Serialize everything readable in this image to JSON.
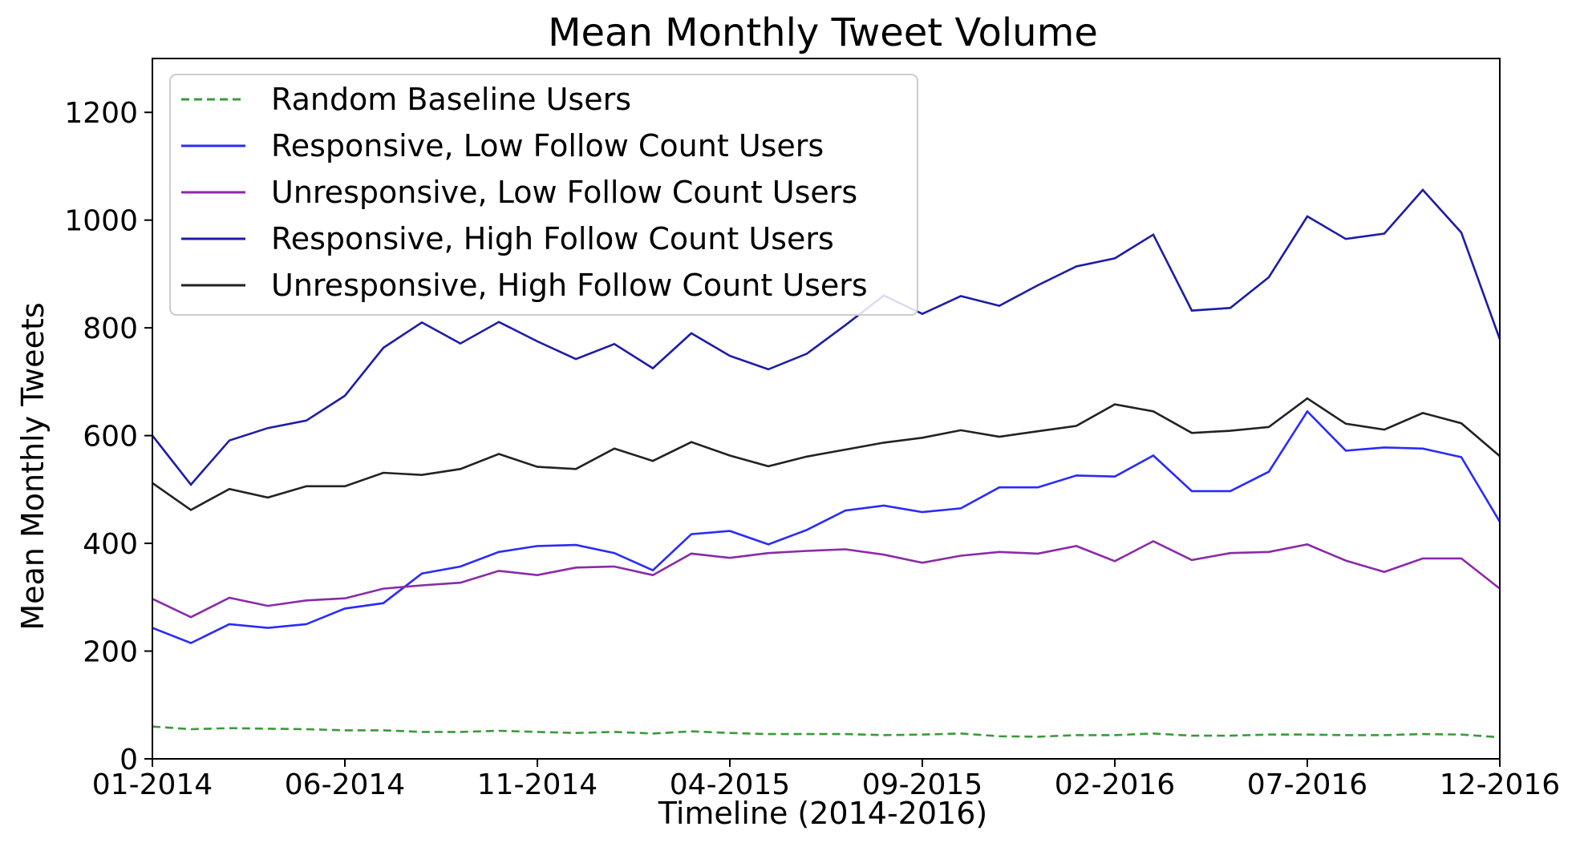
{
  "chart_data": {
    "type": "line",
    "title": "Mean Monthly Tweet Volume",
    "xlabel": "Timeline (2014-2016)",
    "ylabel": "Mean Monthly Tweets",
    "ylim": [
      0,
      1300
    ],
    "yticks": [
      0,
      200,
      400,
      600,
      800,
      1000,
      1200
    ],
    "xticks": [
      {
        "index": 0,
        "label": "01-2014"
      },
      {
        "index": 5,
        "label": "06-2014"
      },
      {
        "index": 10,
        "label": "11-2014"
      },
      {
        "index": 15,
        "label": "04-2015"
      },
      {
        "index": 20,
        "label": "09-2015"
      },
      {
        "index": 25,
        "label": "02-2016"
      },
      {
        "index": 30,
        "label": "07-2016"
      },
      {
        "index": 35,
        "label": "12-2016"
      }
    ],
    "legend_position": "upper-left",
    "series": [
      {
        "name": "Random Baseline Users",
        "color": "#3a9a3a",
        "style": "dashed",
        "values": [
          60,
          55,
          57,
          56,
          55,
          53,
          53,
          50,
          50,
          52,
          50,
          48,
          50,
          47,
          51,
          48,
          46,
          46,
          46,
          44,
          45,
          47,
          42,
          41,
          44,
          44,
          47,
          43,
          43,
          45,
          45,
          44,
          44,
          46,
          45,
          40
        ]
      },
      {
        "name": "Responsive, Low Follow Count Users",
        "color": "#2a2aff",
        "style": "solid",
        "values": [
          243,
          215,
          250,
          243,
          250,
          279,
          289,
          344,
          357,
          384,
          395,
          397,
          382,
          350,
          417,
          423,
          398,
          425,
          461,
          470,
          458,
          465,
          504,
          504,
          526,
          524,
          563,
          497,
          497,
          533,
          645,
          572,
          578,
          576,
          560,
          440
        ]
      },
      {
        "name": "Unresponsive, Low Follow Count Users",
        "color": "#8a2aa8",
        "style": "solid",
        "values": [
          297,
          263,
          299,
          284,
          294,
          298,
          316,
          322,
          327,
          349,
          341,
          355,
          357,
          341,
          381,
          373,
          382,
          386,
          389,
          379,
          364,
          377,
          384,
          381,
          395,
          367,
          404,
          369,
          382,
          384,
          398,
          368,
          347,
          372,
          372,
          316
        ]
      },
      {
        "name": "Responsive, High Follow Count Users",
        "color": "#1c1ca8",
        "style": "solid",
        "values": [
          600,
          509,
          591,
          614,
          628,
          674,
          763,
          810,
          771,
          811,
          775,
          742,
          770,
          725,
          790,
          748,
          723,
          752,
          805,
          860,
          826,
          859,
          841,
          879,
          914,
          929,
          973,
          832,
          837,
          894,
          1007,
          965,
          975,
          1056,
          977,
          779
        ]
      },
      {
        "name": "Unresponsive, High Follow Count Users",
        "color": "#222222",
        "style": "solid",
        "values": [
          512,
          462,
          501,
          485,
          506,
          506,
          531,
          527,
          538,
          566,
          542,
          538,
          576,
          553,
          588,
          563,
          543,
          561,
          574,
          587,
          596,
          610,
          598,
          608,
          618,
          658,
          645,
          605,
          609,
          616,
          669,
          622,
          611,
          642,
          623,
          562
        ]
      }
    ]
  }
}
